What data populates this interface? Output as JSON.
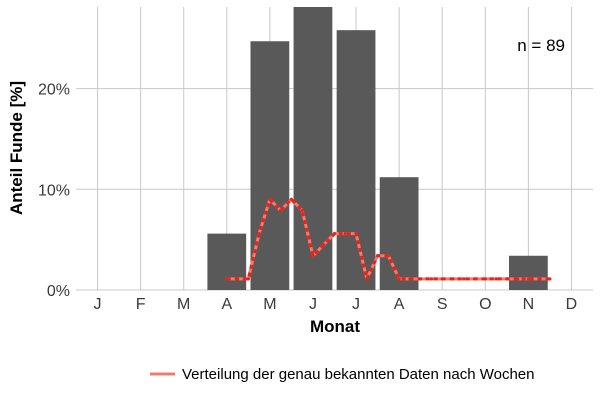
{
  "chart_data": {
    "type": "bar",
    "xlabel": "Monat",
    "ylabel": "Anteil Funde [%]",
    "categories": [
      "J",
      "F",
      "M",
      "A",
      "M",
      "J",
      "J",
      "A",
      "S",
      "O",
      "N",
      "D"
    ],
    "values": [
      0,
      0,
      0,
      5.6,
      24.7,
      28.1,
      25.8,
      11.2,
      0,
      0,
      3.4,
      0
    ],
    "ylim": [
      0,
      28.1
    ],
    "yticks": [
      0,
      10,
      20
    ],
    "ytick_labels": [
      "0%",
      "10%",
      "20%"
    ],
    "annotation": "n = 89",
    "grid": true,
    "legend_position": "bottom",
    "colors": {
      "bars": "#595959",
      "line": "#f07c70",
      "line_dash": "#e8231b",
      "grid": "#c8c8c8"
    },
    "line_series": {
      "name": "Verteilung der genau bekannten Daten nach Wochen",
      "x_month": [
        3.0,
        3.25,
        3.5,
        3.75,
        4.0,
        4.25,
        4.5,
        4.75,
        5.0,
        5.25,
        5.5,
        5.75,
        6.0,
        6.25,
        6.5,
        6.75,
        7.0,
        7.25,
        7.5,
        7.75,
        8.0,
        8.25,
        8.5,
        8.75,
        9.0,
        9.25,
        9.5,
        9.75,
        10.0,
        10.25,
        10.5
      ],
      "y": [
        1.1,
        1.1,
        1.1,
        5.6,
        9.0,
        7.9,
        9.0,
        7.9,
        3.4,
        4.5,
        5.6,
        5.6,
        5.6,
        1.1,
        3.4,
        3.4,
        1.1,
        1.1,
        1.1,
        1.1,
        1.1,
        1.1,
        1.1,
        1.1,
        1.1,
        1.1,
        1.1,
        1.1,
        1.1,
        1.1,
        1.1
      ]
    }
  }
}
